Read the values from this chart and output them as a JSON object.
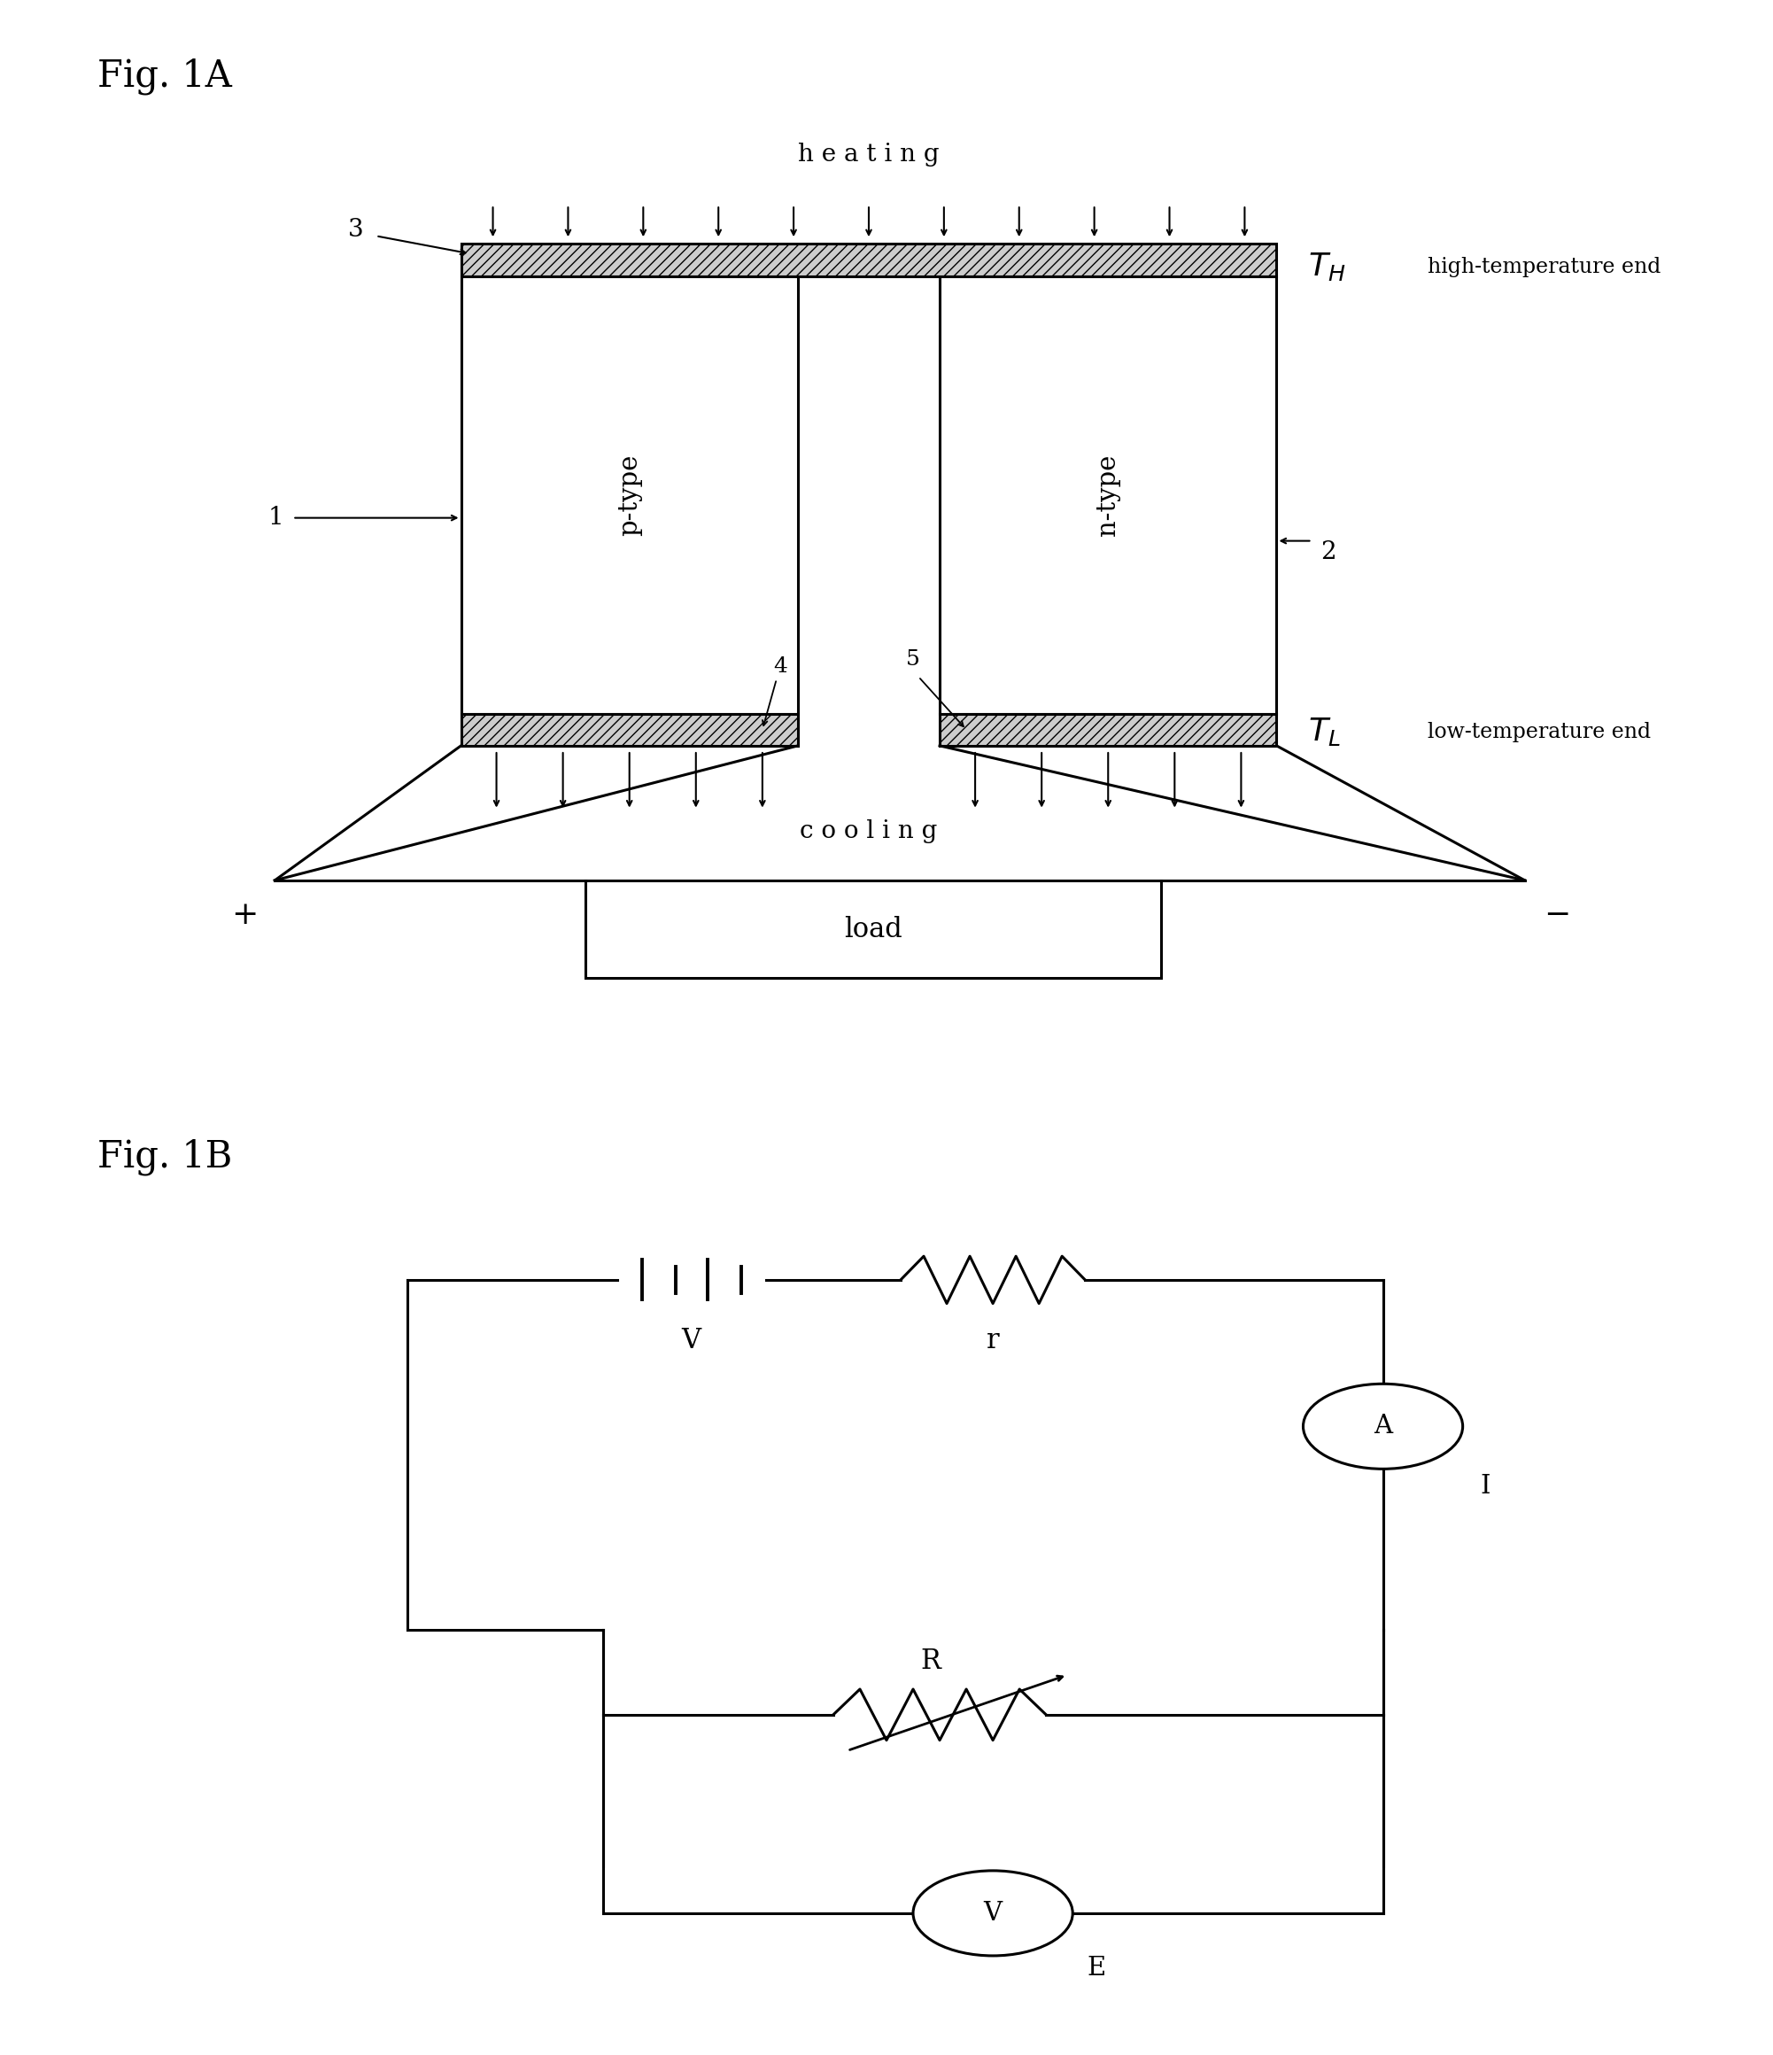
{
  "fig_title_1A": "Fig. 1A",
  "fig_title_1B": "Fig. 1B",
  "background_color": "#ffffff",
  "line_color": "#000000",
  "label_heating": "h e a t i n g",
  "label_cooling": "c o o l i n g",
  "label_ptype": "p-type",
  "label_ntype": "n-type",
  "label_high_temp": "high-temperature end",
  "label_low_temp": "low-temperature end",
  "label_load": "load",
  "label_3": "3",
  "label_1": "1",
  "label_2": "2",
  "label_4": "4",
  "label_5": "5",
  "label_plus": "+",
  "label_minus": "−",
  "label_V_bat": "V",
  "label_r": "r",
  "label_R": "R",
  "label_A": "A",
  "label_I": "I",
  "label_Vmeter": "V",
  "label_E": "E"
}
